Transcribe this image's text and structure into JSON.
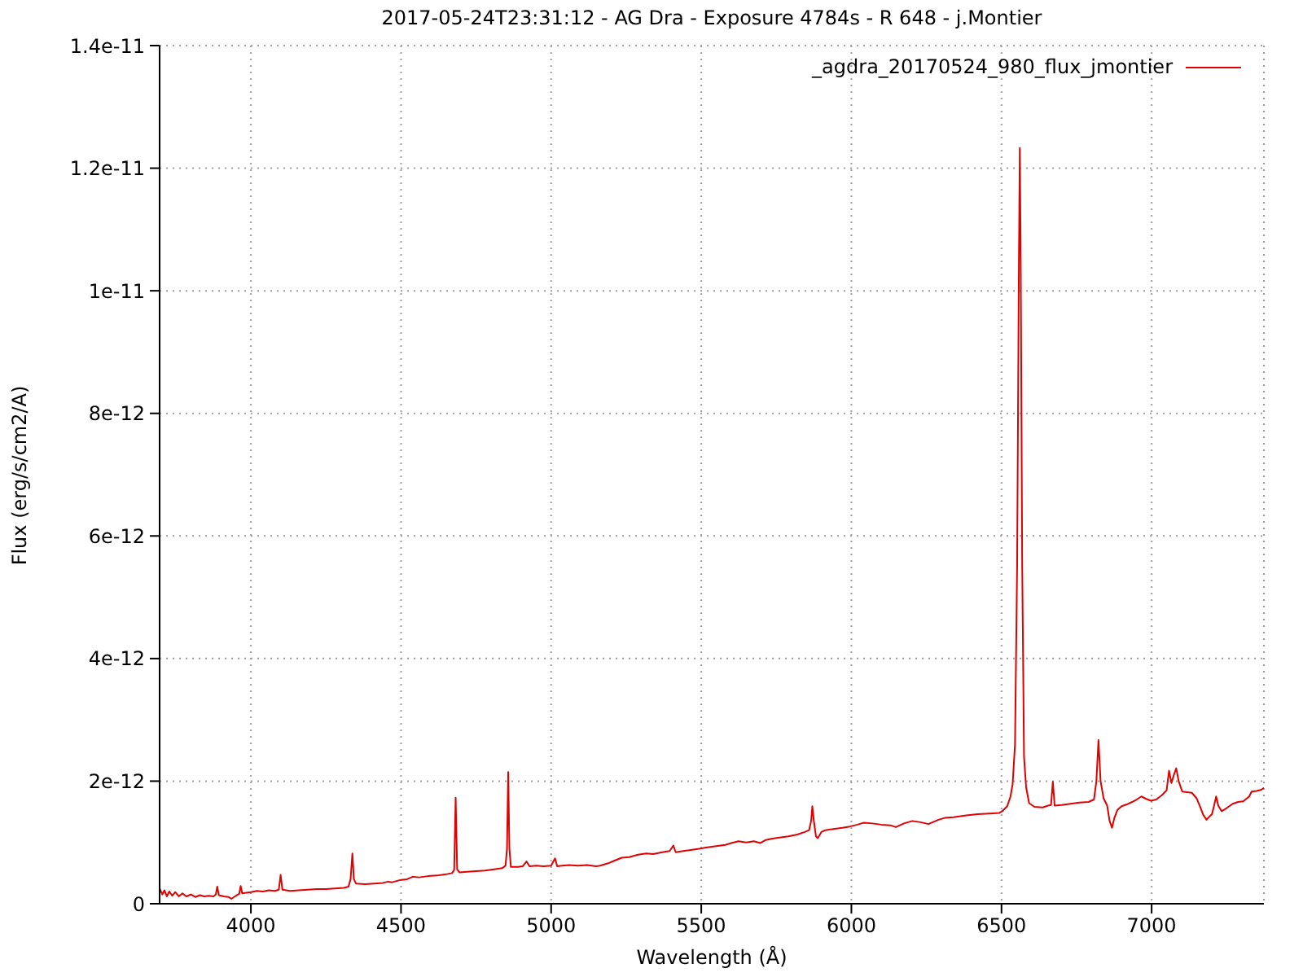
{
  "chart_data": {
    "type": "line",
    "title": "2017-05-24T23:31:12 - AG Dra - Exposure 4784s - R 648 - j.Montier",
    "xlabel": "Wavelength (Å)",
    "ylabel": "Flux (erg/s/cm2/A)",
    "x": [
      3697,
      3705,
      3712,
      3720,
      3728,
      3738,
      3748,
      3760,
      3772,
      3785,
      3800,
      3815,
      3830,
      3845,
      3860,
      3875,
      3883,
      3888,
      3893,
      3910,
      3925,
      3935,
      3950,
      3961,
      3966,
      3971,
      3985,
      4000,
      4020,
      4040,
      4060,
      4080,
      4093,
      4099,
      4105,
      4130,
      4160,
      4190,
      4220,
      4250,
      4280,
      4310,
      4325,
      4332,
      4338,
      4343,
      4350,
      4380,
      4410,
      4440,
      4457,
      4470,
      4500,
      4520,
      4539,
      4560,
      4590,
      4620,
      4650,
      4670,
      4677,
      4682,
      4687,
      4695,
      4720,
      4750,
      4780,
      4810,
      4837,
      4848,
      4853,
      4857,
      4861,
      4866,
      4890,
      4905,
      4918,
      4928,
      4950,
      4975,
      5000,
      5013,
      5020,
      5036,
      5060,
      5090,
      5120,
      5150,
      5163,
      5190,
      5210,
      5235,
      5260,
      5290,
      5317,
      5340,
      5370,
      5395,
      5407,
      5415,
      5440,
      5470,
      5497,
      5520,
      5550,
      5580,
      5600,
      5624,
      5650,
      5675,
      5697,
      5715,
      5733,
      5760,
      5790,
      5820,
      5845,
      5859,
      5866,
      5870,
      5875,
      5882,
      5888,
      5900,
      5913,
      5940,
      5970,
      5995,
      6020,
      6040,
      6070,
      6100,
      6130,
      6148,
      6175,
      6203,
      6230,
      6257,
      6290,
      6311,
      6340,
      6383,
      6420,
      6460,
      6492,
      6505,
      6519,
      6530,
      6537,
      6545,
      6552,
      6558,
      6561,
      6564,
      6569,
      6575,
      6582,
      6592,
      6610,
      6637,
      6655,
      6665,
      6671,
      6677,
      6700,
      6730,
      6760,
      6790,
      6808,
      6816,
      6823,
      6830,
      6840,
      6852,
      6860,
      6868,
      6876,
      6886,
      6900,
      6917,
      6935,
      6950,
      6966,
      6982,
      6998,
      7015,
      7034,
      7050,
      7058,
      7066,
      7074,
      7082,
      7090,
      7102,
      7118,
      7134,
      7150,
      7161,
      7172,
      7183,
      7192,
      7201,
      7208,
      7215,
      7222,
      7233,
      7250,
      7270,
      7288,
      7305,
      7315,
      7325,
      7333,
      7350,
      7365,
      7374
    ],
    "series": [
      {
        "name": "_agdra_20170524_980_flux_jmontier",
        "color": "#e00000",
        "values": [
          2.4e-13,
          1.5e-13,
          2.2e-13,
          1.2e-13,
          2e-13,
          1.3e-13,
          1.9e-13,
          1.2e-13,
          1.7e-13,
          1.2e-13,
          1.5e-13,
          1.1e-13,
          1.4e-13,
          1.2e-13,
          1.3e-13,
          1.2e-13,
          1.5e-13,
          2.8e-13,
          1.4e-13,
          1.2e-13,
          1.1e-13,
          8e-14,
          1.3e-13,
          1.6e-13,
          2.9e-13,
          1.7e-13,
          1.8e-13,
          1.9e-13,
          2.1e-13,
          2e-13,
          2.2e-13,
          2.1e-13,
          2.3e-13,
          4.7e-13,
          2.3e-13,
          2.1e-13,
          2.2e-13,
          2.3e-13,
          2.4e-13,
          2.4e-13,
          2.5e-13,
          2.6e-13,
          2.8e-13,
          4e-13,
          8.2e-13,
          4e-13,
          3.3e-13,
          3.2e-13,
          3.3e-13,
          3.4e-13,
          3.6e-13,
          3.5e-13,
          3.9e-13,
          4e-13,
          4.4e-13,
          4.3e-13,
          4.5e-13,
          4.6e-13,
          4.8e-13,
          5e-13,
          5.5e-13,
          1.73e-12,
          5.6e-13,
          5.1e-13,
          5.2e-13,
          5.3e-13,
          5.4e-13,
          5.6e-13,
          5.8e-13,
          6.2e-13,
          9e-13,
          2.15e-12,
          9e-13,
          6e-13,
          6e-13,
          6.1e-13,
          6.9e-13,
          6.1e-13,
          6.2e-13,
          6.1e-13,
          6.2e-13,
          7.4e-13,
          6.1e-13,
          6.2e-13,
          6.3e-13,
          6.2e-13,
          6.3e-13,
          6.1e-13,
          6.2e-13,
          6.6e-13,
          7e-13,
          7.5e-13,
          7.6e-13,
          8e-13,
          8.2e-13,
          8.1e-13,
          8.4e-13,
          8.6e-13,
          9.5e-13,
          8.4e-13,
          8.6e-13,
          8.8e-13,
          9e-13,
          9.2e-13,
          9.4e-13,
          9.6e-13,
          9.9e-13,
          1.02e-12,
          1e-12,
          1.02e-12,
          9.9e-13,
          1.04e-12,
          1.06e-12,
          1.08e-12,
          1.1e-12,
          1.13e-12,
          1.17e-12,
          1.2e-12,
          1.35e-12,
          1.59e-12,
          1.35e-12,
          1.1e-12,
          1.07e-12,
          1.17e-12,
          1.2e-12,
          1.22e-12,
          1.24e-12,
          1.26e-12,
          1.29e-12,
          1.32e-12,
          1.31e-12,
          1.29e-12,
          1.28e-12,
          1.25e-12,
          1.31e-12,
          1.35e-12,
          1.33e-12,
          1.3e-12,
          1.37e-12,
          1.4e-12,
          1.41e-12,
          1.44e-12,
          1.46e-12,
          1.47e-12,
          1.48e-12,
          1.52e-12,
          1.59e-12,
          1.75e-12,
          1.95e-12,
          2.6e-12,
          5.5e-12,
          1.05e-11,
          1.233e-11,
          1.05e-11,
          5.5e-12,
          2.4e-12,
          1.9e-12,
          1.64e-12,
          1.58e-12,
          1.57e-12,
          1.6e-12,
          1.61e-12,
          1.99e-12,
          1.6e-12,
          1.61e-12,
          1.63e-12,
          1.65e-12,
          1.66e-12,
          1.7e-12,
          2e-12,
          2.67e-12,
          2e-12,
          1.72e-12,
          1.6e-12,
          1.35e-12,
          1.24e-12,
          1.4e-12,
          1.53e-12,
          1.59e-12,
          1.62e-12,
          1.66e-12,
          1.7e-12,
          1.75e-12,
          1.71e-12,
          1.68e-12,
          1.7e-12,
          1.77e-12,
          1.85e-12,
          2.17e-12,
          1.97e-12,
          2.1e-12,
          2.21e-12,
          2e-12,
          1.83e-12,
          1.82e-12,
          1.81e-12,
          1.72e-12,
          1.59e-12,
          1.45e-12,
          1.37e-12,
          1.42e-12,
          1.46e-12,
          1.6e-12,
          1.75e-12,
          1.6e-12,
          1.51e-12,
          1.56e-12,
          1.63e-12,
          1.66e-12,
          1.67e-12,
          1.71e-12,
          1.75e-12,
          1.83e-12,
          1.84e-12,
          1.86e-12,
          1.89e-12
        ]
      }
    ],
    "xlim": [
      3696,
      7374
    ],
    "xticks": [
      4000,
      4500,
      5000,
      5500,
      6000,
      6500,
      7000
    ],
    "ylim": [
      0,
      1.4e-11
    ],
    "yticks": [
      {
        "value": 0,
        "label": "0"
      },
      {
        "value": 2e-12,
        "label": "2e-12"
      },
      {
        "value": 4e-12,
        "label": "4e-12"
      },
      {
        "value": 6e-12,
        "label": "6e-12"
      },
      {
        "value": 8e-12,
        "label": "8e-12"
      },
      {
        "value": 1e-11,
        "label": "1e-11"
      },
      {
        "value": 1.2e-11,
        "label": "1.2e-11"
      },
      {
        "value": 1.4e-11,
        "label": "1.4e-11"
      }
    ],
    "grid": true,
    "legend": "top right"
  }
}
